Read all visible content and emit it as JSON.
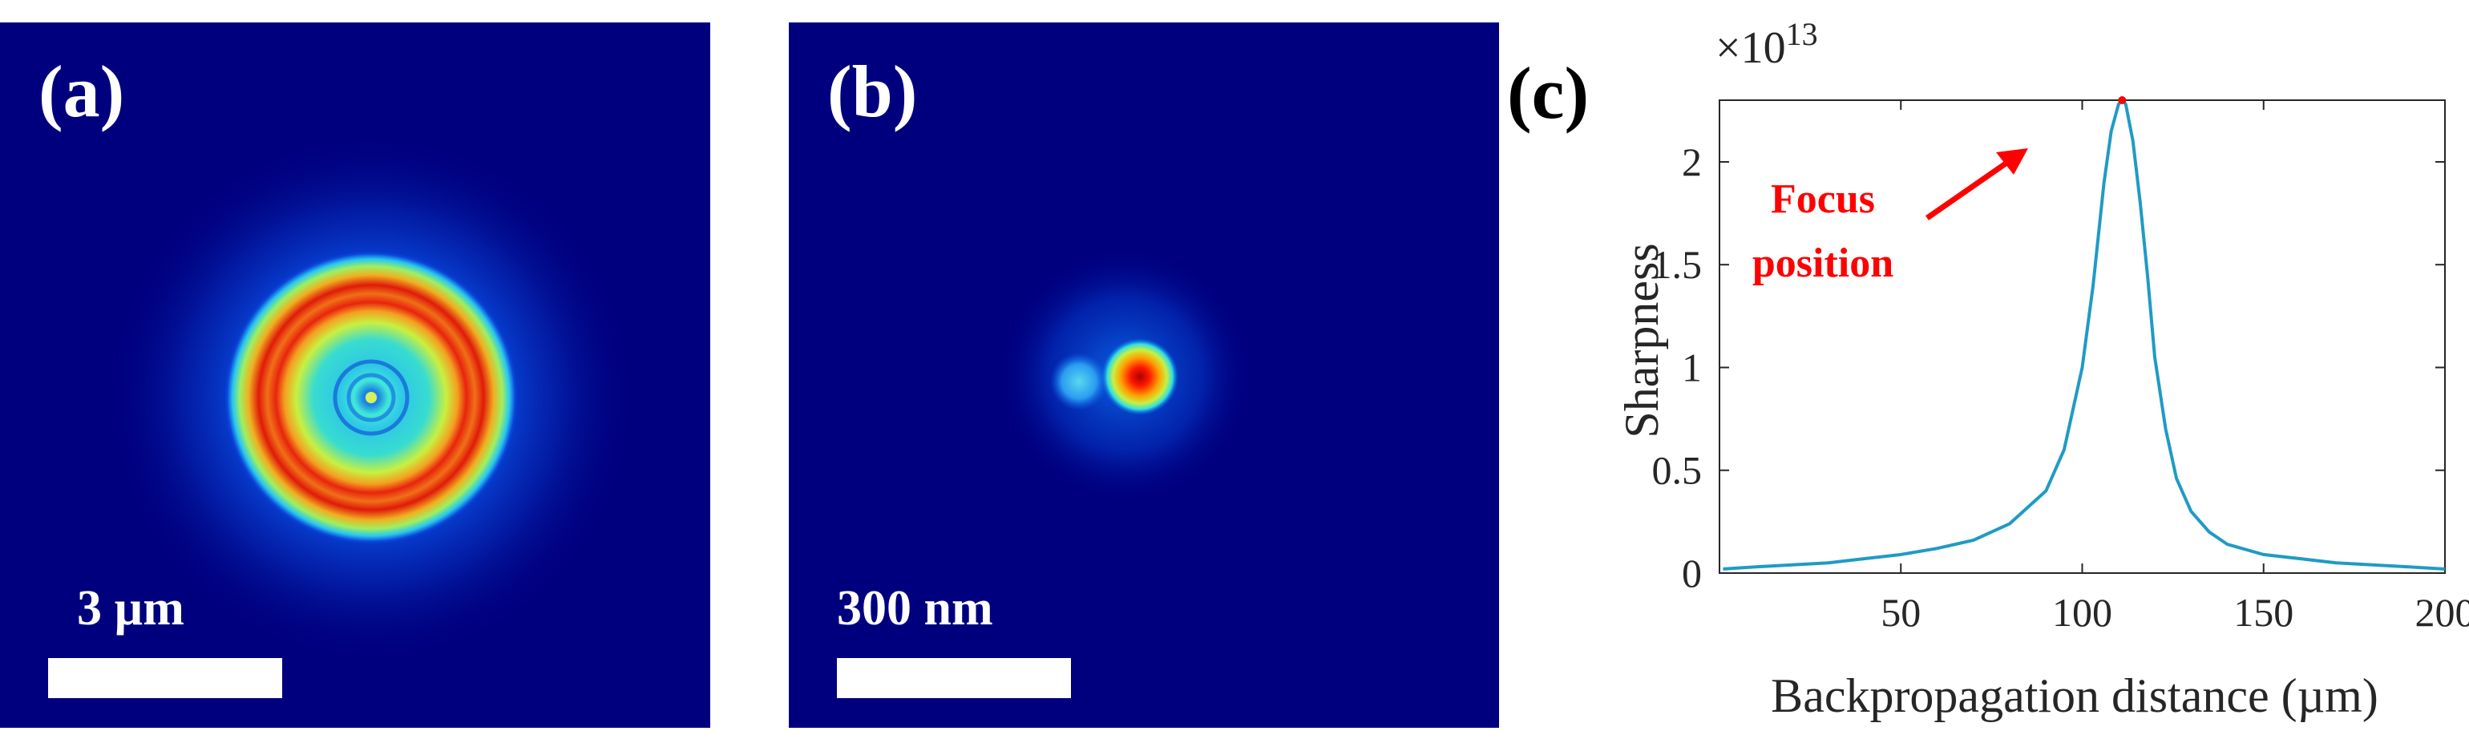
{
  "panels": {
    "a": {
      "label": "(a)",
      "scale_text": "3 µm"
    },
    "b": {
      "label": "(b)",
      "scale_text": "300 nm"
    },
    "c": {
      "label": "(c)"
    }
  },
  "colors": {
    "background_map": "#00007f",
    "ring_red": "#e0230f",
    "ring_yellow": "#f0e020",
    "cyan": "#28d6d0",
    "curve": "#1f9bc4",
    "peak_marker": "#ff0000",
    "annotation": "#ff0000"
  },
  "chart_data": {
    "type": "line",
    "xlabel": "Backpropagation distance (µm)",
    "ylabel": "Sharpness",
    "y_multiplier": "×10",
    "y_exponent": "13",
    "xlim": [
      0,
      200
    ],
    "ylim": [
      0,
      2.3
    ],
    "xticks": [
      50,
      100,
      150,
      200
    ],
    "yticks": [
      0,
      0.5,
      1,
      1.5,
      2
    ],
    "ytick_labels": [
      "0",
      "0.5",
      "1",
      "1.5",
      "2"
    ],
    "grid": false,
    "annotation": {
      "line1": "Focus",
      "line2": "position"
    },
    "peak": {
      "x": 111,
      "y": 2.3
    },
    "series": [
      {
        "x": [
          1,
          10,
          20,
          30,
          40,
          50,
          60,
          70,
          80,
          90,
          95,
          100,
          103,
          106,
          108,
          110,
          111,
          112,
          114,
          116,
          118,
          120,
          123,
          126,
          130,
          135,
          140,
          150,
          160,
          170,
          180,
          190,
          200
        ],
        "y": [
          0.02,
          0.03,
          0.04,
          0.05,
          0.07,
          0.09,
          0.12,
          0.16,
          0.24,
          0.4,
          0.6,
          1.0,
          1.4,
          1.9,
          2.15,
          2.28,
          2.3,
          2.28,
          2.1,
          1.8,
          1.45,
          1.05,
          0.7,
          0.46,
          0.3,
          0.2,
          0.14,
          0.09,
          0.07,
          0.05,
          0.04,
          0.03,
          0.02
        ]
      }
    ]
  }
}
